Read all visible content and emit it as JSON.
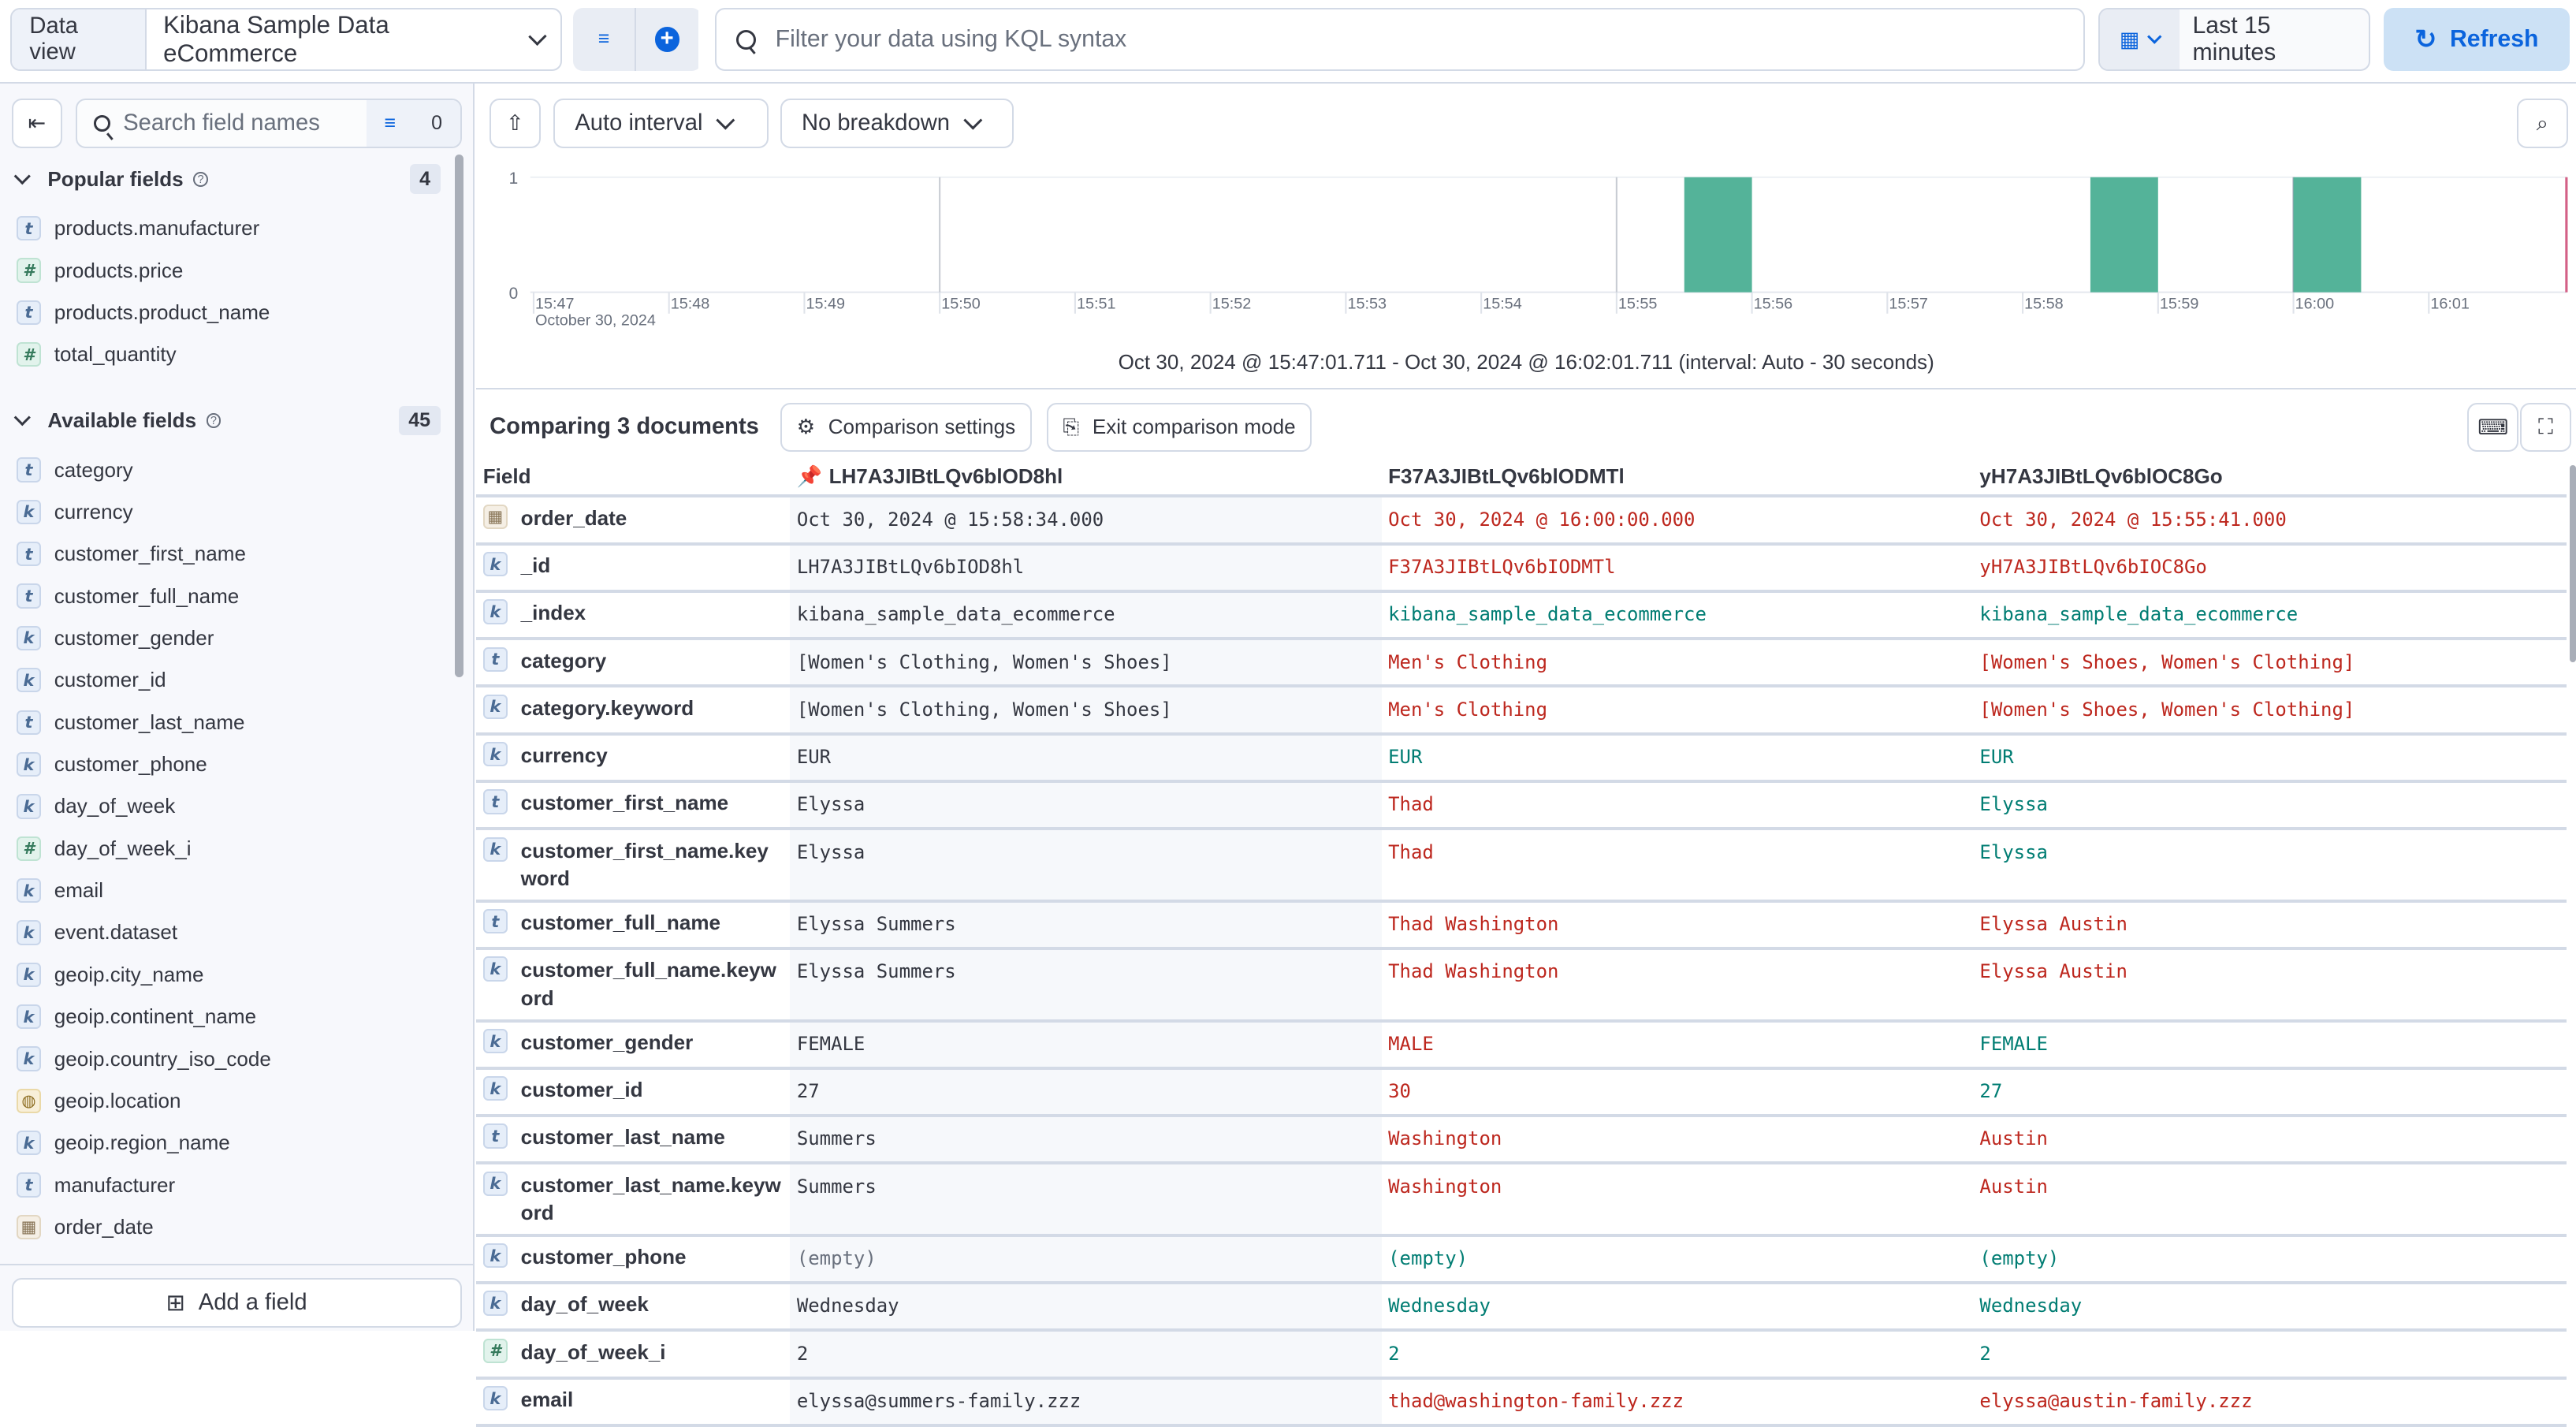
{
  "topbar": {
    "data_view_label": "Data view",
    "data_view_value": "Kibana Sample Data eCommerce",
    "query_placeholder": "Filter your data using KQL syntax",
    "time_range": "Last 15 minutes",
    "refresh_label": "Refresh",
    "accent": "#0b64dd"
  },
  "sidebar": {
    "search_placeholder": "Search field names",
    "filter_count": "0",
    "popular": {
      "title": "Popular fields",
      "count": "4",
      "items": [
        {
          "type": "t",
          "name": "products.manufacturer"
        },
        {
          "type": "#",
          "name": "products.price"
        },
        {
          "type": "t",
          "name": "products.product_name"
        },
        {
          "type": "#",
          "name": "total_quantity"
        }
      ]
    },
    "available": {
      "title": "Available fields",
      "count": "45",
      "items": [
        {
          "type": "t",
          "name": "category"
        },
        {
          "type": "k",
          "name": "currency"
        },
        {
          "type": "t",
          "name": "customer_first_name"
        },
        {
          "type": "t",
          "name": "customer_full_name"
        },
        {
          "type": "k",
          "name": "customer_gender"
        },
        {
          "type": "k",
          "name": "customer_id"
        },
        {
          "type": "t",
          "name": "customer_last_name"
        },
        {
          "type": "k",
          "name": "customer_phone"
        },
        {
          "type": "k",
          "name": "day_of_week"
        },
        {
          "type": "#",
          "name": "day_of_week_i"
        },
        {
          "type": "k",
          "name": "email"
        },
        {
          "type": "k",
          "name": "event.dataset"
        },
        {
          "type": "k",
          "name": "geoip.city_name"
        },
        {
          "type": "k",
          "name": "geoip.continent_name"
        },
        {
          "type": "k",
          "name": "geoip.country_iso_code"
        },
        {
          "type": "geo",
          "name": "geoip.location"
        },
        {
          "type": "k",
          "name": "geoip.region_name"
        },
        {
          "type": "t",
          "name": "manufacturer"
        },
        {
          "type": "date",
          "name": "order_date"
        }
      ]
    },
    "add_field_label": "Add a field"
  },
  "toolbar": {
    "interval_label": "Auto interval",
    "breakdown_label": "No breakdown"
  },
  "chart_data": {
    "type": "bar",
    "ylim": [
      0,
      1
    ],
    "y_ticks": [
      "0",
      "1"
    ],
    "x_ticks": [
      "15:47",
      "15:48",
      "15:49",
      "15:50",
      "15:51",
      "15:52",
      "15:53",
      "15:54",
      "15:55",
      "15:56",
      "15:57",
      "15:58",
      "15:59",
      "16:00",
      "16:01"
    ],
    "x_date_label": "October 30, 2024",
    "bars": [
      {
        "start": "15:55:30",
        "end": "15:56:00",
        "value": 1
      },
      {
        "start": "15:58:30",
        "end": "15:59:00",
        "value": 1
      },
      {
        "start": "16:00:00",
        "end": "16:00:30",
        "value": 1
      }
    ],
    "bar_color": "#54b399",
    "now_marker": "16:02:01",
    "caption": "Oct 30, 2024 @ 15:47:01.711 - Oct 30, 2024 @ 16:02:01.711 (interval: Auto - 30 seconds)"
  },
  "comparison": {
    "title": "Comparing 3 documents",
    "settings_label": "Comparison settings",
    "exit_label": "Exit comparison mode",
    "field_header": "Field",
    "docs": [
      "LH7A3JIBtLQv6blOD8hl",
      "F37A3JIBtLQv6blODMTl",
      "yH7A3JIBtLQv6blOC8Go"
    ],
    "diff_color": "#bd271e",
    "same_color": "#017d73",
    "rows": [
      {
        "type": "date",
        "field": "order_date",
        "values": [
          "Oct 30, 2024 @ 15:58:34.000",
          "Oct 30, 2024 @ 16:00:00.000",
          "Oct 30, 2024 @ 15:55:41.000"
        ],
        "status": [
          "base",
          "diff",
          "diff"
        ]
      },
      {
        "type": "k",
        "field": "_id",
        "values": [
          "LH7A3JIBtLQv6bIOD8hl",
          "F37A3JIBtLQv6bIODMTl",
          "yH7A3JIBtLQv6bIOC8Go"
        ],
        "status": [
          "base",
          "diff",
          "diff"
        ]
      },
      {
        "type": "k",
        "field": "_index",
        "values": [
          "kibana_sample_data_ecommerce",
          "kibana_sample_data_ecommerce",
          "kibana_sample_data_ecommerce"
        ],
        "status": [
          "base",
          "same",
          "same"
        ]
      },
      {
        "type": "t",
        "field": "category",
        "values": [
          "[Women's Clothing, Women's Shoes]",
          "Men's Clothing",
          "[Women's Shoes, Women's Clothing]"
        ],
        "status": [
          "base",
          "diff",
          "diff"
        ]
      },
      {
        "type": "k",
        "field": "category.keyword",
        "values": [
          "[Women's Clothing, Women's Shoes]",
          "Men's Clothing",
          "[Women's Shoes, Women's Clothing]"
        ],
        "status": [
          "base",
          "diff",
          "diff"
        ]
      },
      {
        "type": "k",
        "field": "currency",
        "values": [
          "EUR",
          "EUR",
          "EUR"
        ],
        "status": [
          "base",
          "same",
          "same"
        ]
      },
      {
        "type": "t",
        "field": "customer_first_name",
        "values": [
          "Elyssa",
          "Thad",
          "Elyssa"
        ],
        "status": [
          "base",
          "diff",
          "same"
        ]
      },
      {
        "type": "k",
        "field": "customer_first_name.keyword",
        "values": [
          "Elyssa",
          "Thad",
          "Elyssa"
        ],
        "status": [
          "base",
          "diff",
          "same"
        ]
      },
      {
        "type": "t",
        "field": "customer_full_name",
        "values": [
          "Elyssa Summers",
          "Thad Washington",
          "Elyssa Austin"
        ],
        "status": [
          "base",
          "diff",
          "diff"
        ]
      },
      {
        "type": "k",
        "field": "customer_full_name.keyword",
        "values": [
          "Elyssa Summers",
          "Thad Washington",
          "Elyssa Austin"
        ],
        "status": [
          "base",
          "diff",
          "diff"
        ]
      },
      {
        "type": "k",
        "field": "customer_gender",
        "values": [
          "FEMALE",
          "MALE",
          "FEMALE"
        ],
        "status": [
          "base",
          "diff",
          "same"
        ]
      },
      {
        "type": "k",
        "field": "customer_id",
        "values": [
          "27",
          "30",
          "27"
        ],
        "status": [
          "base",
          "diff",
          "same"
        ]
      },
      {
        "type": "t",
        "field": "customer_last_name",
        "values": [
          "Summers",
          "Washington",
          "Austin"
        ],
        "status": [
          "base",
          "diff",
          "diff"
        ]
      },
      {
        "type": "k",
        "field": "customer_last_name.keyword",
        "values": [
          "Summers",
          "Washington",
          "Austin"
        ],
        "status": [
          "base",
          "diff",
          "diff"
        ]
      },
      {
        "type": "k",
        "field": "customer_phone",
        "values": [
          "(empty)",
          "(empty)",
          "(empty)"
        ],
        "status": [
          "empty",
          "same",
          "same"
        ]
      },
      {
        "type": "k",
        "field": "day_of_week",
        "values": [
          "Wednesday",
          "Wednesday",
          "Wednesday"
        ],
        "status": [
          "base",
          "same",
          "same"
        ]
      },
      {
        "type": "#",
        "field": "day_of_week_i",
        "values": [
          "2",
          "2",
          "2"
        ],
        "status": [
          "base",
          "same",
          "same"
        ]
      },
      {
        "type": "k",
        "field": "email",
        "values": [
          "elyssa@summers-family.zzz",
          "thad@washington-family.zzz",
          "elyssa@austin-family.zzz"
        ],
        "status": [
          "base",
          "diff",
          "diff"
        ]
      }
    ]
  }
}
